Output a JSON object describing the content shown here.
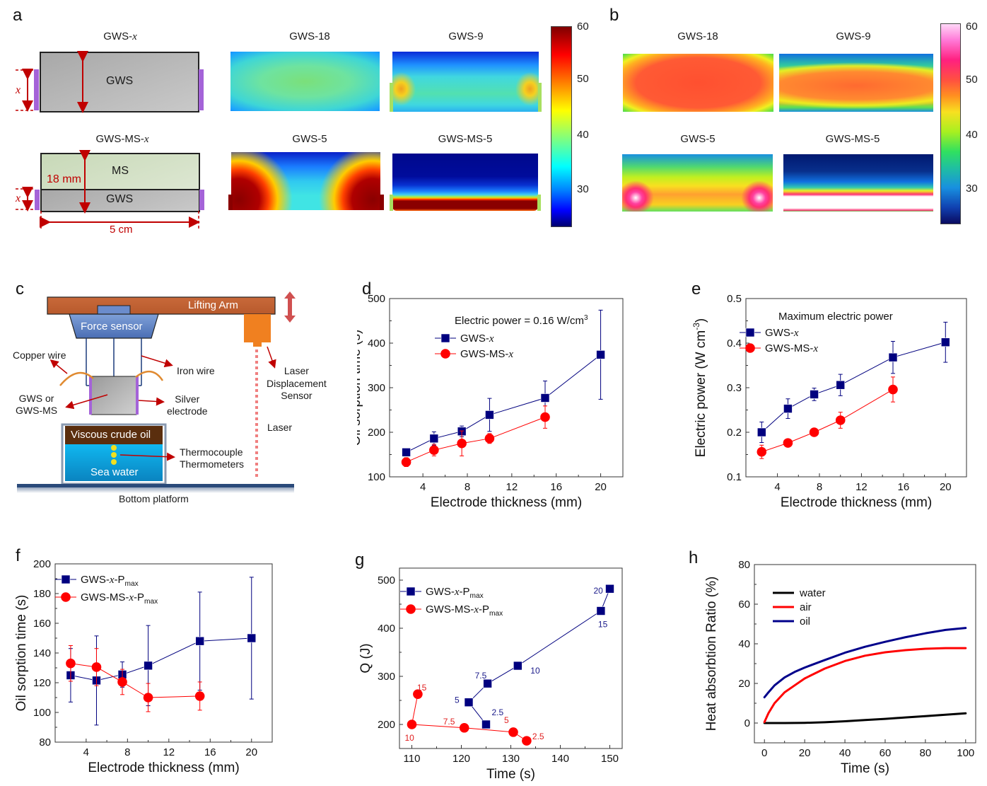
{
  "panels": {
    "a": {
      "letter": "a",
      "schematic_top": {
        "title_prefix": "GWS-",
        "title_var": "x",
        "block_label": "GWS",
        "dim_label": "x"
      },
      "schematic_bottom": {
        "title_prefix": "GWS-MS-",
        "title_var": "x",
        "top_label": "MS",
        "bottom_label": "GWS",
        "height_label": "18 mm",
        "dim_label": "x",
        "width_label": "5 cm"
      },
      "maps": [
        {
          "title": "GWS-18"
        },
        {
          "title": "GWS-9"
        },
        {
          "title": "GWS-5"
        },
        {
          "title": "GWS-MS-5"
        }
      ],
      "colorbar": {
        "ticks": [
          "60",
          "50",
          "40",
          "30"
        ],
        "colormap": "jet",
        "range": [
          23,
          60
        ]
      }
    },
    "b": {
      "letter": "b",
      "maps": [
        {
          "title": "GWS-18"
        },
        {
          "title": "GWS-9"
        },
        {
          "title": "GWS-5"
        },
        {
          "title": "GWS-MS-5"
        }
      ],
      "colorbar": {
        "ticks": [
          "60",
          "50",
          "40",
          "30"
        ],
        "colormap": "thermal-camera",
        "range": [
          23,
          60
        ]
      }
    },
    "c": {
      "letter": "c",
      "labels": {
        "lifting_arm": "Lifting Arm",
        "force_sensor": "Force sensor",
        "copper_wire": "Copper wire",
        "iron_wire": "Iron wire",
        "sample_line1": "GWS or",
        "sample_line2": "GWS-MS",
        "silver_line1": "Silver",
        "silver_line2": "electrode",
        "laser_line1": "Laser",
        "laser_line2": "Displacement",
        "laser_line3": "Sensor",
        "laser": "Laser",
        "oil": "Viscous crude oil",
        "water": "Sea water",
        "thermo_line1": "Thermocouple",
        "thermo_line2": "Thermometers",
        "platform": "Bottom platform"
      }
    }
  },
  "chart_data": [
    {
      "id": "d",
      "letter": "d",
      "type": "line",
      "title": "",
      "annotation": "Electric power = 0.16 W/cm",
      "annotation_sup": "3",
      "xlabel": "Electrode thickness (mm)",
      "ylabel": "Oil sorption time (s)",
      "xlim": [
        1,
        22
      ],
      "ylim": [
        100,
        500
      ],
      "xticks": [
        4,
        8,
        12,
        16,
        20
      ],
      "yticks": [
        100,
        200,
        300,
        400,
        500
      ],
      "grid": false,
      "legend_position": "top-left",
      "series": [
        {
          "name": "GWS-",
          "name_var": "x",
          "color": "#00007f",
          "marker": "square",
          "x": [
            2.5,
            5,
            7.5,
            10,
            15,
            20
          ],
          "y": [
            155,
            186,
            202,
            239,
            277,
            374
          ],
          "err": [
            8,
            15,
            12,
            37,
            38,
            100
          ]
        },
        {
          "name": "GWS-MS-",
          "name_var": "x",
          "color": "#ff0000",
          "marker": "circle",
          "x": [
            2.5,
            5,
            7.5,
            10,
            15
          ],
          "y": [
            133,
            160,
            175,
            186,
            234
          ],
          "err": [
            10,
            13,
            28,
            11,
            25
          ]
        }
      ]
    },
    {
      "id": "e",
      "letter": "e",
      "type": "line",
      "annotation": "Maximum electric power",
      "xlabel": "Electrode thickness (mm)",
      "ylabel": "Electric power (W cm",
      "ylabel_sup": "-3",
      "ylabel_end": ")",
      "xlim": [
        1,
        22
      ],
      "ylim": [
        0.1,
        0.5
      ],
      "xticks": [
        4,
        8,
        12,
        16,
        20
      ],
      "yticks": [
        0.1,
        0.2,
        0.3,
        0.4,
        0.5
      ],
      "ytick_labels": [
        "0.1",
        "0.2",
        "0.3",
        "0.4",
        "0.5"
      ],
      "grid": false,
      "legend_position": "top-left",
      "series": [
        {
          "name": "GWS-",
          "name_var": "x",
          "color": "#00007f",
          "marker": "square",
          "x": [
            2.5,
            5,
            7.5,
            10,
            15,
            20
          ],
          "y": [
            0.2,
            0.253,
            0.285,
            0.306,
            0.368,
            0.402
          ],
          "err": [
            0.023,
            0.022,
            0.014,
            0.024,
            0.036,
            0.045
          ]
        },
        {
          "name": "GWS-MS-",
          "name_var": "x",
          "color": "#ff0000",
          "marker": "circle",
          "x": [
            2.5,
            5,
            7.5,
            10,
            15
          ],
          "y": [
            0.156,
            0.176,
            0.2,
            0.227,
            0.296
          ],
          "err": [
            0.015,
            0.005,
            0.005,
            0.018,
            0.028
          ]
        }
      ]
    },
    {
      "id": "f",
      "letter": "f",
      "type": "line",
      "xlabel": "Electrode thickness (mm)",
      "ylabel": "Oil sorption time (s)",
      "xlim": [
        1,
        22
      ],
      "ylim": [
        80,
        200
      ],
      "xticks": [
        4,
        8,
        12,
        16,
        20
      ],
      "yticks": [
        80,
        100,
        120,
        140,
        160,
        180,
        200
      ],
      "grid": false,
      "legend_position": "top-left",
      "series": [
        {
          "name": "GWS-",
          "name_var": "x",
          "name_suffix": "-P",
          "name_sub": "max",
          "color": "#00007f",
          "marker": "square",
          "x": [
            2.5,
            5,
            7.5,
            10,
            15,
            20
          ],
          "y": [
            125,
            121.5,
            125.5,
            131.5,
            148,
            150
          ],
          "err": [
            18,
            30,
            8.5,
            27,
            33,
            41
          ]
        },
        {
          "name": "GWS-MS-",
          "name_var": "x",
          "name_suffix": "-P",
          "name_sub": "max",
          "color": "#ff0000",
          "marker": "circle",
          "x": [
            2.5,
            5,
            7.5,
            10,
            15
          ],
          "y": [
            133,
            130.5,
            120.5,
            110,
            111
          ],
          "err": [
            12,
            12.5,
            8.5,
            9.5,
            9.5
          ]
        }
      ]
    },
    {
      "id": "g",
      "letter": "g",
      "type": "scatter",
      "xlabel": "Time (s)",
      "ylabel": "Q (J)",
      "xlim": [
        107.5,
        152.5
      ],
      "ylim": [
        150,
        525
      ],
      "xticks": [
        110,
        120,
        130,
        140,
        150
      ],
      "yticks": [
        200,
        300,
        400,
        500
      ],
      "grid": false,
      "legend_position": "top-left",
      "series": [
        {
          "name": "GWS-",
          "name_var": "x",
          "name_suffix": "-P",
          "name_sub": "max",
          "color": "#00007f",
          "marker": "square",
          "x": [
            125,
            121.5,
            125.3,
            131.4,
            148.2,
            150
          ],
          "y": [
            200,
            246,
            285,
            322,
            436,
            482
          ],
          "point_labels": [
            "2.5",
            "5",
            "7.5",
            "10",
            "15",
            "20"
          ]
        },
        {
          "name": "GWS-MS-",
          "name_var": "x",
          "name_suffix": "-P",
          "name_sub": "max",
          "color": "#ff0000",
          "marker": "circle",
          "x": [
            133.2,
            130.5,
            120.6,
            110,
            111.2
          ],
          "y": [
            166,
            184,
            193,
            200,
            263
          ],
          "point_labels": [
            "2.5",
            "5",
            "7.5",
            "10",
            "15"
          ]
        }
      ]
    },
    {
      "id": "h",
      "letter": "h",
      "type": "line",
      "xlabel": "Time (s)",
      "ylabel": "Heat absorbtion Ratio (%)",
      "xlim": [
        -5,
        105
      ],
      "ylim": [
        -10,
        80
      ],
      "xticks": [
        0,
        20,
        40,
        60,
        80,
        100
      ],
      "yticks": [
        0,
        20,
        40,
        60,
        80
      ],
      "grid": false,
      "legend_position": "top-left",
      "series": [
        {
          "name": "water",
          "color": "#000000",
          "x": [
            0,
            10,
            20,
            30,
            40,
            50,
            60,
            70,
            80,
            90,
            100
          ],
          "y": [
            0,
            0,
            0.1,
            0.4,
            0.9,
            1.5,
            2.1,
            2.8,
            3.5,
            4.2,
            4.9
          ]
        },
        {
          "name": "air",
          "color": "#ff0000",
          "x": [
            0,
            2,
            5,
            10,
            15,
            20,
            30,
            40,
            50,
            60,
            70,
            80,
            90,
            100
          ],
          "y": [
            0.5,
            5,
            10,
            15.5,
            19,
            22.5,
            27.5,
            31.3,
            34,
            35.7,
            36.8,
            37.5,
            37.8,
            37.8
          ]
        },
        {
          "name": "oil",
          "color": "#00008b",
          "x": [
            0,
            2,
            5,
            10,
            15,
            20,
            30,
            40,
            50,
            60,
            70,
            80,
            90,
            100
          ],
          "y": [
            13,
            15.5,
            19,
            23,
            25.8,
            28,
            31.8,
            35.5,
            38.5,
            41,
            43.3,
            45.3,
            47,
            48
          ]
        }
      ]
    }
  ]
}
